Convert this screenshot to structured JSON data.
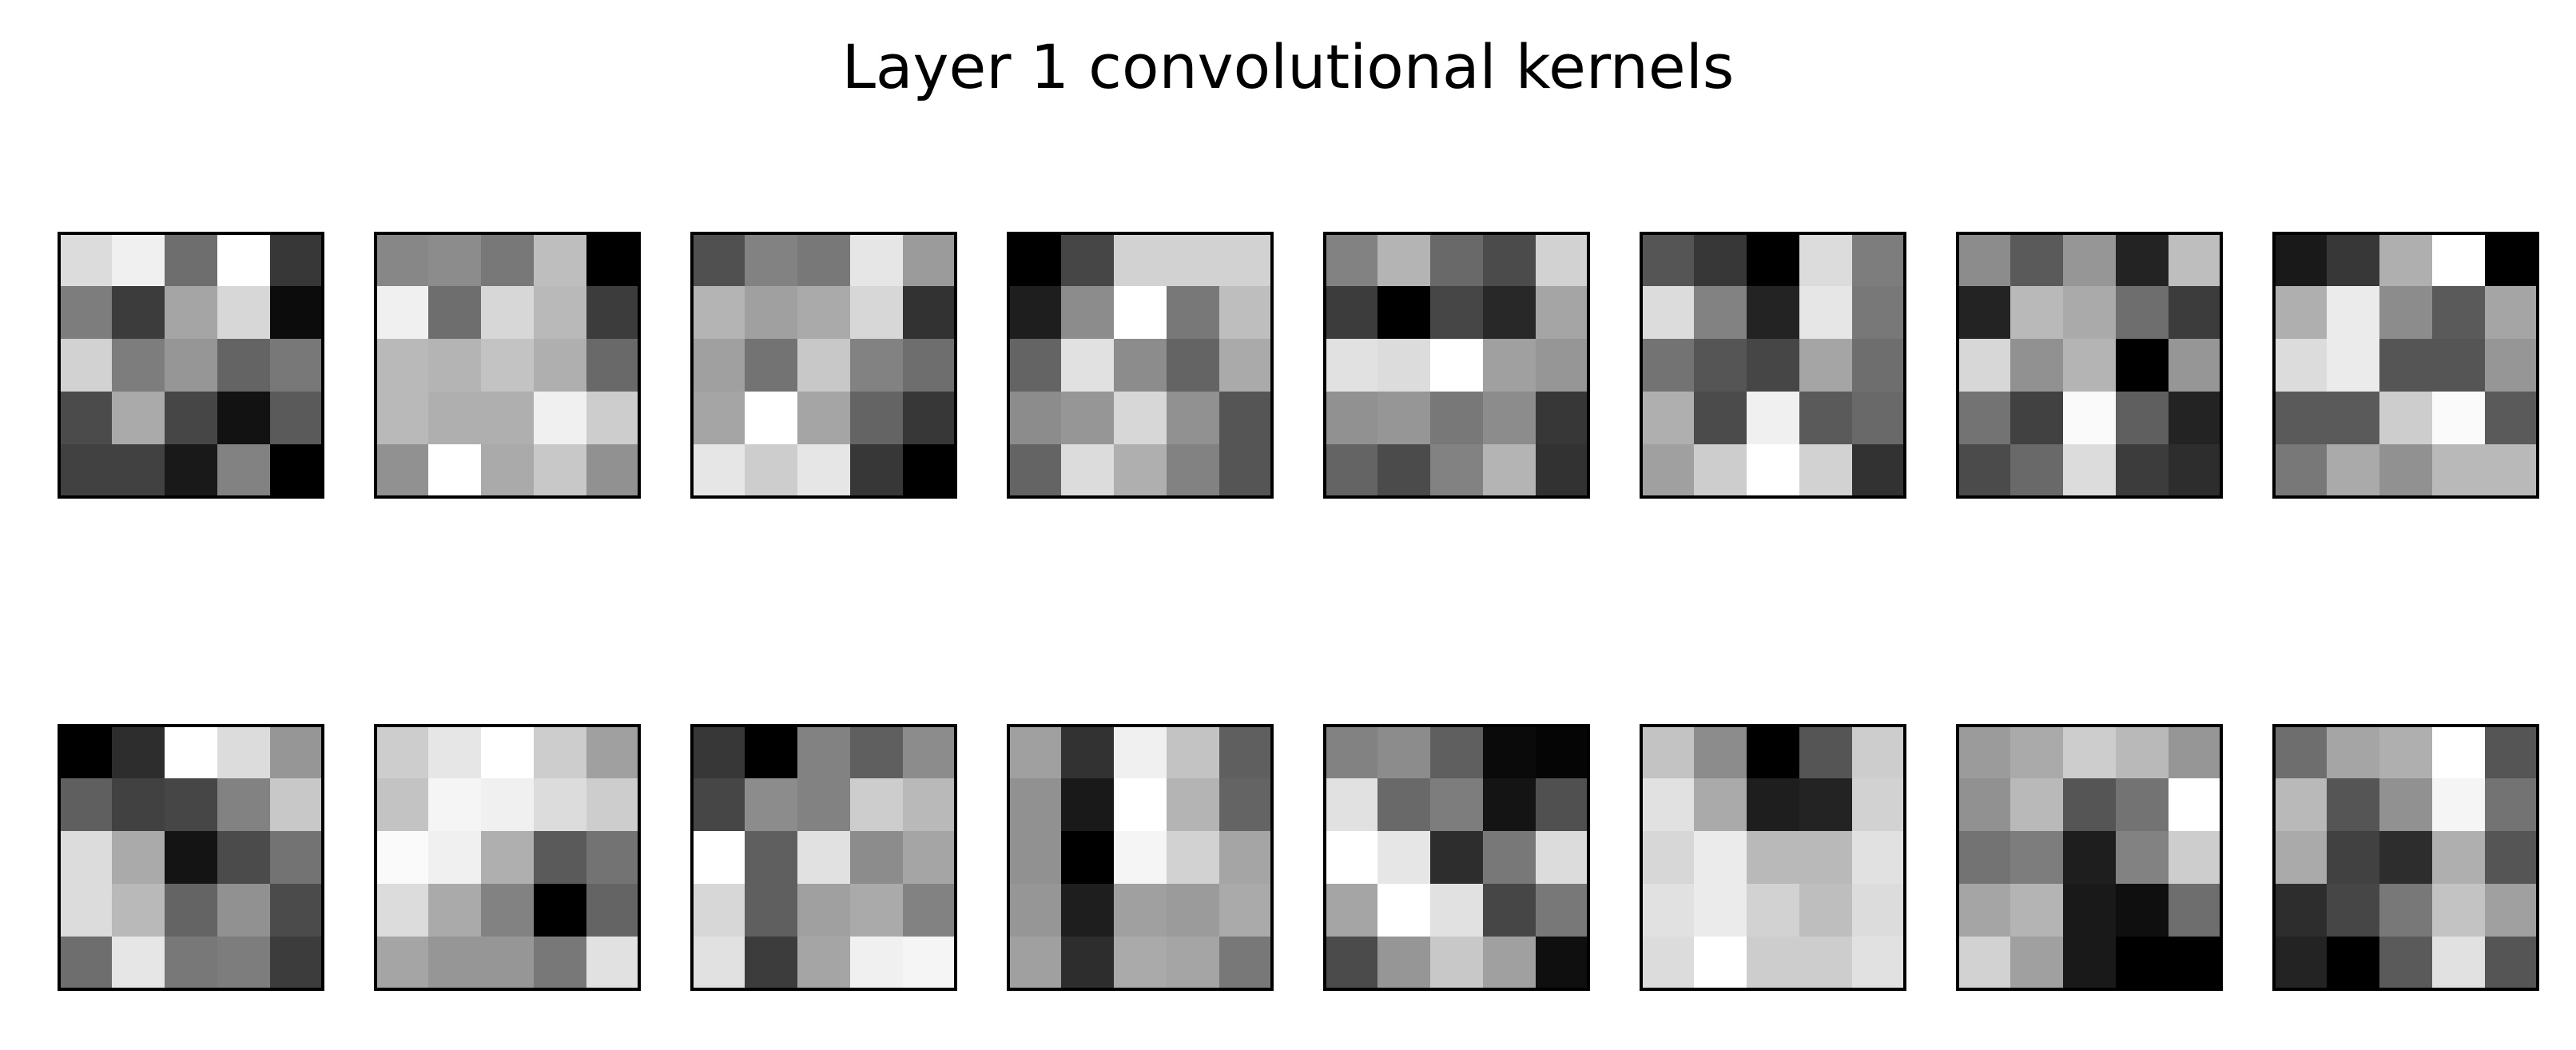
{
  "chart_data": {
    "type": "heatmap",
    "title": "Layer 1 convolutional kernels",
    "grid_layout": {
      "rows": 2,
      "cols": 8
    },
    "kernel_size": [
      5,
      5
    ],
    "colormap": "gray",
    "value_range": [
      0,
      255
    ],
    "axes_ticks": false,
    "kernels": [
      [
        [
          220,
          240,
          110,
          255,
          55
        ],
        [
          125,
          60,
          165,
          215,
          12
        ],
        [
          210,
          125,
          150,
          100,
          120
        ],
        [
          75,
          170,
          70,
          18,
          90
        ],
        [
          65,
          65,
          25,
          130,
          0
        ]
      ],
      [
        [
          135,
          140,
          120,
          190,
          0
        ],
        [
          240,
          110,
          215,
          185,
          60
        ],
        [
          185,
          180,
          195,
          175,
          105
        ],
        [
          185,
          175,
          175,
          240,
          205
        ],
        [
          145,
          255,
          170,
          200,
          145
        ]
      ],
      [
        [
          80,
          130,
          120,
          230,
          155
        ],
        [
          180,
          160,
          170,
          215,
          50
        ],
        [
          160,
          115,
          200,
          130,
          110
        ],
        [
          165,
          255,
          165,
          100,
          55
        ],
        [
          230,
          205,
          230,
          55,
          0
        ]
      ],
      [
        [
          0,
          70,
          210,
          210,
          210
        ],
        [
          30,
          140,
          255,
          120,
          190
        ],
        [
          100,
          225,
          140,
          100,
          170
        ],
        [
          140,
          150,
          215,
          145,
          85
        ],
        [
          100,
          220,
          175,
          130,
          85
        ]
      ],
      [
        [
          130,
          180,
          105,
          75,
          210
        ],
        [
          60,
          0,
          70,
          40,
          165
        ],
        [
          225,
          220,
          255,
          160,
          150
        ],
        [
          145,
          150,
          120,
          140,
          55
        ],
        [
          100,
          75,
          130,
          180,
          50
        ]
      ],
      [
        [
          85,
          55,
          0,
          220,
          125
        ],
        [
          220,
          130,
          35,
          230,
          120
        ],
        [
          115,
          85,
          70,
          165,
          110
        ],
        [
          175,
          75,
          240,
          90,
          105
        ],
        [
          160,
          205,
          255,
          210,
          50
        ]
      ],
      [
        [
          140,
          90,
          150,
          35,
          190
        ],
        [
          35,
          185,
          170,
          110,
          60
        ],
        [
          215,
          145,
          180,
          0,
          150
        ],
        [
          115,
          65,
          250,
          95,
          35
        ],
        [
          75,
          105,
          220,
          60,
          45
        ]
      ],
      [
        [
          25,
          55,
          175,
          255,
          0
        ],
        [
          175,
          235,
          140,
          90,
          165
        ],
        [
          220,
          235,
          85,
          85,
          150
        ],
        [
          90,
          90,
          205,
          250,
          90
        ],
        [
          120,
          170,
          145,
          185,
          185
        ]
      ],
      [
        [
          0,
          45,
          255,
          220,
          150
        ],
        [
          95,
          65,
          70,
          130,
          200
        ],
        [
          220,
          170,
          20,
          75,
          115
        ],
        [
          220,
          185,
          100,
          145,
          75
        ],
        [
          110,
          230,
          120,
          125,
          60
        ]
      ],
      [
        [
          205,
          230,
          255,
          205,
          160
        ],
        [
          195,
          245,
          240,
          220,
          205
        ],
        [
          250,
          240,
          175,
          90,
          115
        ],
        [
          220,
          170,
          130,
          0,
          100
        ],
        [
          165,
          150,
          150,
          120,
          225
        ]
      ],
      [
        [
          55,
          0,
          130,
          95,
          140
        ],
        [
          70,
          140,
          130,
          205,
          185
        ],
        [
          255,
          95,
          225,
          140,
          165
        ],
        [
          215,
          95,
          160,
          170,
          130
        ],
        [
          225,
          60,
          165,
          240,
          245
        ]
      ],
      [
        [
          160,
          50,
          240,
          195,
          95
        ],
        [
          145,
          25,
          255,
          180,
          100
        ],
        [
          145,
          0,
          245,
          210,
          165
        ],
        [
          150,
          30,
          160,
          155,
          170
        ],
        [
          160,
          45,
          170,
          165,
          120
        ]
      ],
      [
        [
          130,
          140,
          95,
          10,
          5
        ],
        [
          225,
          105,
          125,
          20,
          80
        ],
        [
          255,
          230,
          45,
          120,
          220
        ],
        [
          165,
          255,
          225,
          70,
          120
        ],
        [
          75,
          150,
          200,
          160,
          15
        ]
      ],
      [
        [
          195,
          140,
          0,
          85,
          205
        ],
        [
          225,
          170,
          30,
          35,
          210
        ],
        [
          215,
          235,
          185,
          185,
          225
        ],
        [
          225,
          235,
          210,
          190,
          220
        ],
        [
          220,
          255,
          205,
          205,
          225
        ]
      ],
      [
        [
          155,
          170,
          205,
          185,
          150
        ],
        [
          145,
          185,
          85,
          115,
          255
        ],
        [
          115,
          125,
          30,
          130,
          205
        ],
        [
          165,
          180,
          25,
          15,
          110
        ],
        [
          210,
          160,
          25,
          0,
          0
        ]
      ],
      [
        [
          110,
          165,
          175,
          255,
          85
        ],
        [
          185,
          85,
          145,
          245,
          115
        ],
        [
          170,
          65,
          45,
          175,
          85
        ],
        [
          45,
          70,
          120,
          195,
          160
        ],
        [
          35,
          0,
          90,
          225,
          85
        ]
      ]
    ]
  }
}
